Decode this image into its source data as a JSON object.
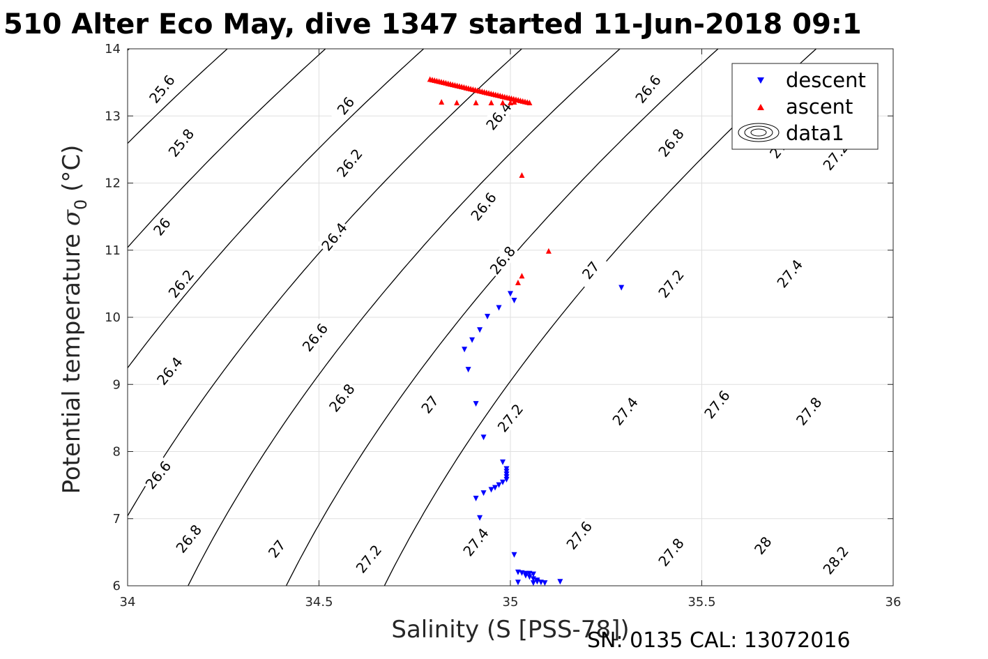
{
  "chart_data": {
    "type": "scatter",
    "title": "510 Alter Eco May, dive 1347 started 11-Jun-2018 09:1",
    "xlabel": "Salinity (S [PSS-78])",
    "ylabel_prefix": "Potential temperature ",
    "ylabel_symbol": "σ",
    "ylabel_sub": "0",
    "ylabel_suffix": " (°C)",
    "footer": "SN: 0135  CAL: 13072016",
    "xlim": [
      34,
      36
    ],
    "ylim": [
      6,
      14
    ],
    "x_ticks": [
      34,
      34.5,
      35,
      35.5,
      36
    ],
    "x_tick_labels": [
      "34",
      "34.5",
      "35",
      "35.5",
      "36"
    ],
    "y_ticks": [
      6,
      7,
      8,
      9,
      10,
      11,
      12,
      13,
      14
    ],
    "y_tick_labels": [
      "6",
      "7",
      "8",
      "9",
      "10",
      "11",
      "12",
      "13",
      "14"
    ],
    "grid": true,
    "legend_position": "top-right",
    "series": [
      {
        "name": "descent",
        "marker": "triangle-down",
        "color": "#0000ff",
        "points": [
          [
            35.29,
            10.44
          ],
          [
            35.0,
            10.35
          ],
          [
            35.01,
            10.25
          ],
          [
            34.97,
            10.14
          ],
          [
            34.94,
            10.01
          ],
          [
            34.92,
            9.81
          ],
          [
            34.9,
            9.66
          ],
          [
            34.88,
            9.52
          ],
          [
            34.89,
            9.22
          ],
          [
            34.91,
            8.71
          ],
          [
            34.93,
            8.21
          ],
          [
            34.98,
            7.84
          ],
          [
            34.99,
            7.74
          ],
          [
            34.99,
            7.7
          ],
          [
            34.99,
            7.66
          ],
          [
            34.99,
            7.62
          ],
          [
            34.99,
            7.58
          ],
          [
            34.98,
            7.54
          ],
          [
            34.97,
            7.5
          ],
          [
            34.96,
            7.46
          ],
          [
            34.95,
            7.43
          ],
          [
            34.93,
            7.38
          ],
          [
            34.91,
            7.3
          ],
          [
            34.92,
            7.01
          ],
          [
            35.01,
            6.46
          ],
          [
            35.02,
            6.2
          ],
          [
            35.03,
            6.19
          ],
          [
            35.04,
            6.18
          ],
          [
            35.05,
            6.18
          ],
          [
            35.06,
            6.17
          ],
          [
            35.04,
            6.15
          ],
          [
            35.05,
            6.13
          ],
          [
            35.06,
            6.1
          ],
          [
            35.07,
            6.08
          ],
          [
            35.07,
            6.06
          ],
          [
            35.08,
            6.05
          ],
          [
            35.09,
            6.04
          ],
          [
            35.02,
            6.05
          ],
          [
            35.06,
            6.04
          ],
          [
            35.13,
            6.06
          ]
        ]
      },
      {
        "name": "ascent",
        "marker": "triangle-up",
        "color": "#ff0000",
        "points": [
          [
            35.1,
            10.99
          ],
          [
            35.03,
            10.62
          ],
          [
            35.02,
            10.52
          ],
          [
            35.03,
            12.12
          ],
          [
            34.82,
            13.21
          ],
          [
            34.86,
            13.2
          ],
          [
            34.91,
            13.2
          ],
          [
            34.95,
            13.2
          ],
          [
            34.98,
            13.2
          ],
          [
            35.0,
            13.2
          ],
          [
            35.01,
            13.21
          ]
        ],
        "line_segment": [
          [
            34.79,
            13.55
          ],
          [
            35.05,
            13.2
          ]
        ]
      },
      {
        "name": "data1",
        "marker": "contour",
        "color": "#000000"
      }
    ],
    "contours": {
      "line_levels": [
        25.6,
        25.8,
        26,
        26.2,
        26.4,
        26.6,
        26.8,
        27,
        27.2,
        27.4,
        27.6,
        27.8,
        28,
        28.2
      ],
      "labels": [
        {
          "text": "25.6",
          "s": 34.09,
          "t": 13.4
        },
        {
          "text": "26",
          "s": 34.57,
          "t": 13.15
        },
        {
          "text": "25.8",
          "s": 34.14,
          "t": 12.6
        },
        {
          "text": "26.2",
          "s": 34.58,
          "t": 12.3
        },
        {
          "text": "26.4",
          "s": 34.97,
          "t": 13.0
        },
        {
          "text": "26.6",
          "s": 35.36,
          "t": 13.4
        },
        {
          "text": "26.8",
          "s": 35.42,
          "t": 12.6
        },
        {
          "text": "27",
          "s": 35.7,
          "t": 12.5
        },
        {
          "text": "27.2",
          "s": 35.85,
          "t": 12.4
        },
        {
          "text": "26",
          "s": 34.09,
          "t": 11.35
        },
        {
          "text": "26.4",
          "s": 34.54,
          "t": 11.2
        },
        {
          "text": "26.6",
          "s": 34.93,
          "t": 11.65
        },
        {
          "text": "26.2",
          "s": 34.14,
          "t": 10.5
        },
        {
          "text": "26.8",
          "s": 34.98,
          "t": 10.85
        },
        {
          "text": "27",
          "s": 35.21,
          "t": 10.7
        },
        {
          "text": "27.2",
          "s": 35.42,
          "t": 10.5
        },
        {
          "text": "27.4",
          "s": 35.73,
          "t": 10.65
        },
        {
          "text": "26.6",
          "s": 34.49,
          "t": 9.7
        },
        {
          "text": "26.4",
          "s": 34.11,
          "t": 9.2
        },
        {
          "text": "26.8",
          "s": 34.56,
          "t": 8.8
        },
        {
          "text": "27",
          "s": 34.79,
          "t": 8.7
        },
        {
          "text": "27.2",
          "s": 35.0,
          "t": 8.5
        },
        {
          "text": "27.4",
          "s": 35.3,
          "t": 8.6
        },
        {
          "text": "27.6",
          "s": 35.54,
          "t": 8.7
        },
        {
          "text": "27.8",
          "s": 35.78,
          "t": 8.6
        },
        {
          "text": "26.6",
          "s": 34.08,
          "t": 7.65
        },
        {
          "text": "26.8",
          "s": 34.16,
          "t": 6.7
        },
        {
          "text": "27",
          "s": 34.39,
          "t": 6.55
        },
        {
          "text": "27.2",
          "s": 34.63,
          "t": 6.4
        },
        {
          "text": "27.4",
          "s": 34.91,
          "t": 6.65
        },
        {
          "text": "27.6",
          "s": 35.18,
          "t": 6.75
        },
        {
          "text": "27.8",
          "s": 35.42,
          "t": 6.5
        },
        {
          "text": "28",
          "s": 35.66,
          "t": 6.6
        },
        {
          "text": "28.2",
          "s": 35.85,
          "t": 6.38
        }
      ]
    }
  }
}
